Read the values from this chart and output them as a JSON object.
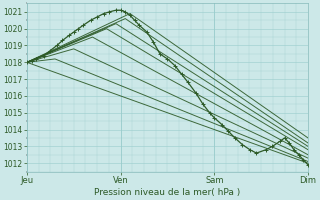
{
  "background_color": "#cce8e8",
  "grid_color": "#99cccc",
  "line_color": "#2d5a27",
  "ylim": [
    1011.5,
    1021.5
  ],
  "yticks": [
    1012,
    1013,
    1014,
    1015,
    1016,
    1017,
    1018,
    1019,
    1020,
    1021
  ],
  "xtick_labels": [
    "Jeu",
    "Ven",
    "Sam",
    "Dim"
  ],
  "xtick_positions": [
    0,
    1,
    2,
    3
  ],
  "xlabel": "Pression niveau de la mer( hPa )",
  "detailed_line": {
    "x": [
      0.0,
      0.05,
      0.1,
      0.18,
      0.25,
      0.32,
      0.38,
      0.45,
      0.5,
      0.55,
      0.6,
      0.68,
      0.75,
      0.82,
      0.88,
      0.95,
      1.0,
      1.05,
      1.1,
      1.15,
      1.2,
      1.28,
      1.35,
      1.42,
      1.5,
      1.58,
      1.65,
      1.72,
      1.8,
      1.88,
      1.95,
      2.0,
      2.08,
      2.15,
      2.22,
      2.3,
      2.38,
      2.45,
      2.55,
      2.62,
      2.7,
      2.75,
      2.8,
      2.85,
      2.9,
      2.95,
      3.0
    ],
    "y": [
      1018.0,
      1018.1,
      1018.2,
      1018.4,
      1018.7,
      1019.0,
      1019.3,
      1019.6,
      1019.8,
      1020.0,
      1020.2,
      1020.5,
      1020.7,
      1020.9,
      1021.0,
      1021.1,
      1021.1,
      1021.0,
      1020.8,
      1020.5,
      1020.2,
      1019.8,
      1019.2,
      1018.5,
      1018.2,
      1017.8,
      1017.3,
      1016.8,
      1016.2,
      1015.5,
      1015.0,
      1014.7,
      1014.3,
      1013.9,
      1013.5,
      1013.1,
      1012.8,
      1012.6,
      1012.8,
      1013.0,
      1013.3,
      1013.5,
      1013.2,
      1012.8,
      1012.5,
      1012.2,
      1011.9
    ]
  },
  "ensemble_lines": [
    {
      "x": [
        0.0,
        3.0
      ],
      "y": [
        1018.0,
        1012.0
      ]
    },
    {
      "x": [
        0.0,
        0.3,
        3.0
      ],
      "y": [
        1018.0,
        1018.2,
        1012.1
      ]
    },
    {
      "x": [
        0.0,
        0.5,
        3.0
      ],
      "y": [
        1018.0,
        1018.8,
        1012.3
      ]
    },
    {
      "x": [
        0.0,
        0.7,
        3.0
      ],
      "y": [
        1018.0,
        1019.5,
        1012.5
      ]
    },
    {
      "x": [
        0.0,
        0.85,
        3.0
      ],
      "y": [
        1018.0,
        1020.0,
        1012.8
      ]
    },
    {
      "x": [
        0.0,
        0.95,
        3.0
      ],
      "y": [
        1018.0,
        1020.3,
        1013.0
      ]
    },
    {
      "x": [
        0.0,
        1.05,
        3.0
      ],
      "y": [
        1018.0,
        1020.6,
        1013.2
      ]
    },
    {
      "x": [
        0.0,
        1.1,
        3.0
      ],
      "y": [
        1018.0,
        1020.9,
        1013.5
      ]
    }
  ]
}
